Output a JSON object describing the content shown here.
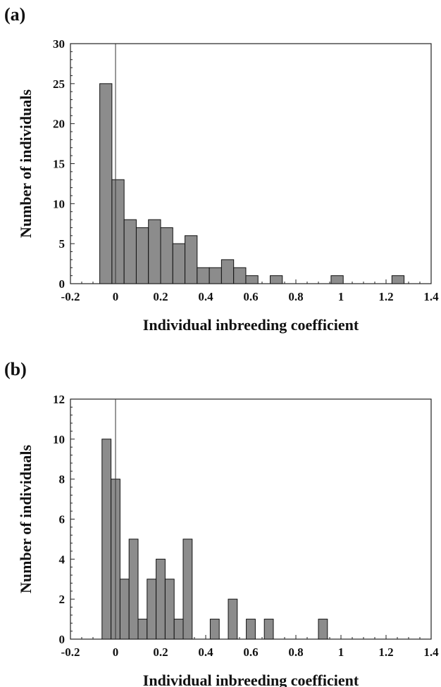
{
  "chart_data": [
    {
      "panel": "(a)",
      "type": "bar",
      "xlabel": "Individual inbreeding coefficient",
      "ylabel": "Number of individuals",
      "xlim": [
        -0.2,
        1.4
      ],
      "ylim": [
        0,
        30
      ],
      "xticks": [
        "-0.2",
        "0",
        "0.2",
        "0.4",
        "0.6",
        "0.8",
        "1",
        "1.2",
        "1.4"
      ],
      "yticks": [
        "0",
        "5",
        "10",
        "15",
        "20",
        "25",
        "30"
      ],
      "bin_width": 0.054,
      "bin_starts": [
        -0.07,
        -0.016,
        0.038,
        0.092,
        0.146,
        0.2,
        0.254,
        0.308,
        0.362,
        0.416,
        0.47,
        0.524,
        0.578,
        0.686,
        0.956,
        1.226
      ],
      "values": [
        25,
        13,
        8,
        7,
        8,
        7,
        5,
        6,
        2,
        2,
        3,
        2,
        1,
        1,
        1,
        1
      ],
      "reference_line_x": 0,
      "grid": false,
      "bar_color": "#8c8c8c"
    },
    {
      "panel": "(b)",
      "type": "bar",
      "xlabel": "Individual inbreeding coefficient",
      "ylabel": "Number of individuals",
      "xlim": [
        -0.2,
        1.4
      ],
      "ylim": [
        0,
        12
      ],
      "xticks": [
        "-0.2",
        "0",
        "0.2",
        "0.4",
        "0.6",
        "0.8",
        "1",
        "1.2",
        "1.4"
      ],
      "yticks": [
        "0",
        "2",
        "4",
        "6",
        "8",
        "10",
        "12"
      ],
      "bin_width": 0.04,
      "bin_starts": [
        -0.06,
        -0.02,
        0.02,
        0.06,
        0.1,
        0.14,
        0.18,
        0.22,
        0.26,
        0.3,
        0.42,
        0.5,
        0.58,
        0.66,
        0.9
      ],
      "values": [
        10,
        8,
        3,
        5,
        1,
        3,
        4,
        3,
        1,
        5,
        1,
        2,
        1,
        1,
        1
      ],
      "reference_line_x": 0,
      "grid": false,
      "bar_color": "#8c8c8c"
    }
  ]
}
